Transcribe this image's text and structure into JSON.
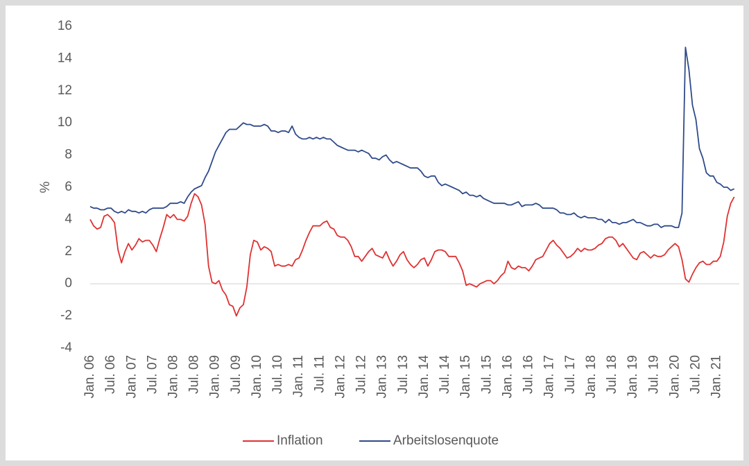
{
  "chart_data": {
    "type": "line",
    "ylabel": "%",
    "categories": [
      "Jan. 06",
      null,
      null,
      null,
      null,
      null,
      "Jul. 06",
      null,
      null,
      null,
      null,
      null,
      "Jan. 07",
      null,
      null,
      null,
      null,
      null,
      "Jul. 07",
      null,
      null,
      null,
      null,
      null,
      "Jan. 08",
      null,
      null,
      null,
      null,
      null,
      "Jul. 08",
      null,
      null,
      null,
      null,
      null,
      "Jan. 09",
      null,
      null,
      null,
      null,
      null,
      "Jul. 09",
      null,
      null,
      null,
      null,
      null,
      "Jan. 10",
      null,
      null,
      null,
      null,
      null,
      "Jul. 10",
      null,
      null,
      null,
      null,
      null,
      "Jan. 11",
      null,
      null,
      null,
      null,
      null,
      "Jul. 11",
      null,
      null,
      null,
      null,
      null,
      "Jan. 12",
      null,
      null,
      null,
      null,
      null,
      "Jul. 12",
      null,
      null,
      null,
      null,
      null,
      "Jan. 13",
      null,
      null,
      null,
      null,
      null,
      "Jul. 13",
      null,
      null,
      null,
      null,
      null,
      "Jan. 14",
      null,
      null,
      null,
      null,
      null,
      "Jul. 14",
      null,
      null,
      null,
      null,
      null,
      "Jan. 15",
      null,
      null,
      null,
      null,
      null,
      "Jul. 15",
      null,
      null,
      null,
      null,
      null,
      "Jan. 16",
      null,
      null,
      null,
      null,
      null,
      "Jul. 16",
      null,
      null,
      null,
      null,
      null,
      "Jan. 17",
      null,
      null,
      null,
      null,
      null,
      "Jul. 17",
      null,
      null,
      null,
      null,
      null,
      "Jan. 18",
      null,
      null,
      null,
      null,
      null,
      "Jul. 18",
      null,
      null,
      null,
      null,
      null,
      "Jan. 19",
      null,
      null,
      null,
      null,
      null,
      "Jul. 19",
      null,
      null,
      null,
      null,
      null,
      "Jan. 20",
      null,
      null,
      null,
      null,
      null,
      "Jul. 20",
      null,
      null,
      null,
      null,
      null,
      "Jan. 21",
      null,
      null,
      null,
      null,
      null
    ],
    "series": [
      {
        "name": "Inflation",
        "color": "#e03030",
        "values": [
          4.0,
          3.6,
          3.4,
          3.5,
          4.2,
          4.3,
          4.1,
          3.8,
          2.1,
          1.3,
          2.0,
          2.5,
          2.1,
          2.4,
          2.8,
          2.6,
          2.7,
          2.7,
          2.4,
          2.0,
          2.8,
          3.5,
          4.3,
          4.1,
          4.3,
          4.0,
          4.0,
          3.9,
          4.2,
          5.0,
          5.6,
          5.4,
          4.9,
          3.7,
          1.1,
          0.1,
          0.0,
          0.2,
          -0.4,
          -0.7,
          -1.3,
          -1.4,
          -2.0,
          -1.5,
          -1.3,
          -0.2,
          1.8,
          2.7,
          2.6,
          2.1,
          2.3,
          2.2,
          2.0,
          1.1,
          1.2,
          1.1,
          1.1,
          1.2,
          1.1,
          1.5,
          1.6,
          2.1,
          2.7,
          3.2,
          3.6,
          3.6,
          3.6,
          3.8,
          3.9,
          3.5,
          3.4,
          3.0,
          2.9,
          2.9,
          2.7,
          2.3,
          1.7,
          1.7,
          1.4,
          1.7,
          2.0,
          2.2,
          1.8,
          1.7,
          1.6,
          2.0,
          1.5,
          1.1,
          1.4,
          1.8,
          2.0,
          1.5,
          1.2,
          1.0,
          1.2,
          1.5,
          1.6,
          1.1,
          1.5,
          2.0,
          2.1,
          2.1,
          2.0,
          1.7,
          1.7,
          1.7,
          1.3,
          0.8,
          -0.1,
          0.0,
          -0.1,
          -0.2,
          0.0,
          0.1,
          0.2,
          0.2,
          0.0,
          0.2,
          0.5,
          0.7,
          1.4,
          1.0,
          0.9,
          1.1,
          1.0,
          1.0,
          0.8,
          1.1,
          1.5,
          1.6,
          1.7,
          2.1,
          2.5,
          2.7,
          2.4,
          2.2,
          1.9,
          1.6,
          1.7,
          1.9,
          2.2,
          2.0,
          2.2,
          2.1,
          2.1,
          2.2,
          2.4,
          2.5,
          2.8,
          2.9,
          2.9,
          2.7,
          2.3,
          2.5,
          2.2,
          1.9,
          1.6,
          1.5,
          1.9,
          2.0,
          1.8,
          1.6,
          1.8,
          1.7,
          1.7,
          1.8,
          2.1,
          2.3,
          2.5,
          2.3,
          1.5,
          0.3,
          0.1,
          0.6,
          1.0,
          1.3,
          1.4,
          1.2,
          1.2,
          1.4,
          1.4,
          1.7,
          2.6,
          4.2,
          5.0,
          5.4
        ]
      },
      {
        "name": "Arbeitslosenquote",
        "color": "#2f4a8a",
        "values": [
          4.8,
          4.7,
          4.7,
          4.6,
          4.6,
          4.7,
          4.7,
          4.5,
          4.4,
          4.5,
          4.4,
          4.6,
          4.5,
          4.5,
          4.4,
          4.5,
          4.4,
          4.6,
          4.7,
          4.7,
          4.7,
          4.7,
          4.8,
          5.0,
          5.0,
          5.0,
          5.1,
          5.0,
          5.4,
          5.7,
          5.9,
          6.0,
          6.1,
          6.6,
          7.0,
          7.6,
          8.2,
          8.6,
          9.0,
          9.4,
          9.6,
          9.6,
          9.6,
          9.8,
          10.0,
          9.9,
          9.9,
          9.8,
          9.8,
          9.8,
          9.9,
          9.8,
          9.5,
          9.5,
          9.4,
          9.5,
          9.5,
          9.4,
          9.8,
          9.3,
          9.1,
          9.0,
          9.0,
          9.1,
          9.0,
          9.1,
          9.0,
          9.1,
          9.0,
          9.0,
          8.8,
          8.6,
          8.5,
          8.4,
          8.3,
          8.3,
          8.3,
          8.2,
          8.3,
          8.2,
          8.1,
          7.8,
          7.8,
          7.7,
          7.9,
          8.0,
          7.7,
          7.5,
          7.6,
          7.5,
          7.4,
          7.3,
          7.2,
          7.2,
          7.2,
          7.0,
          6.7,
          6.6,
          6.7,
          6.7,
          6.3,
          6.1,
          6.2,
          6.1,
          6.0,
          5.9,
          5.8,
          5.6,
          5.7,
          5.5,
          5.5,
          5.4,
          5.5,
          5.3,
          5.2,
          5.1,
          5.0,
          5.0,
          5.0,
          5.0,
          4.9,
          4.9,
          5.0,
          5.1,
          4.8,
          4.9,
          4.9,
          4.9,
          5.0,
          4.9,
          4.7,
          4.7,
          4.7,
          4.7,
          4.6,
          4.4,
          4.4,
          4.3,
          4.3,
          4.4,
          4.2,
          4.1,
          4.2,
          4.1,
          4.1,
          4.1,
          4.0,
          4.0,
          3.8,
          4.0,
          3.8,
          3.8,
          3.7,
          3.8,
          3.8,
          3.9,
          4.0,
          3.8,
          3.8,
          3.7,
          3.6,
          3.6,
          3.7,
          3.7,
          3.5,
          3.6,
          3.6,
          3.6,
          3.5,
          3.5,
          4.4,
          14.7,
          13.3,
          11.1,
          10.2,
          8.4,
          7.8,
          6.9,
          6.7,
          6.7,
          6.3,
          6.2,
          6.0,
          6.0,
          5.8,
          5.9
        ]
      }
    ],
    "ylim": [
      -4,
      16
    ],
    "yticks": [
      -4,
      -2,
      0,
      2,
      4,
      6,
      8,
      10,
      12,
      14,
      16
    ],
    "legend": "bottom"
  }
}
